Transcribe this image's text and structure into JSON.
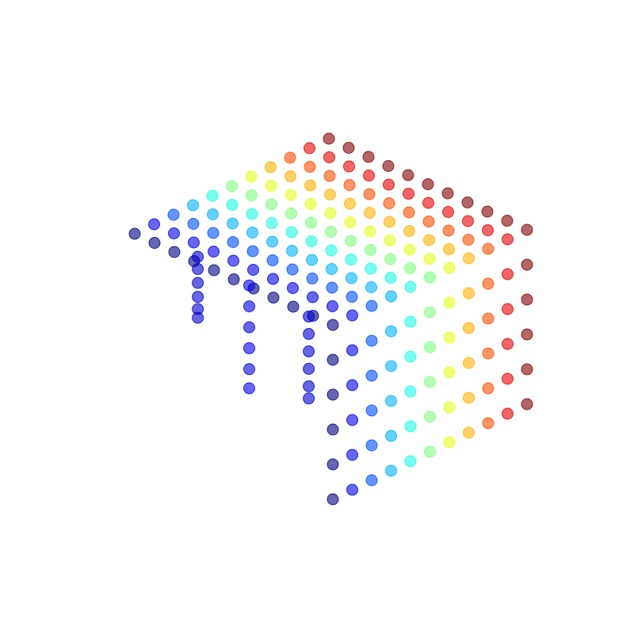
{
  "chart_data": {
    "type": "scatter3d",
    "colormap": "jet",
    "color_by": "x",
    "opacity": 0.6,
    "x": [
      0,
      0,
      0,
      0,
      0,
      0,
      0,
      0,
      0,
      0,
      0,
      0.1,
      0.1,
      0.1,
      0.1,
      0.1,
      0.1,
      0.1,
      0.1,
      0.1,
      0.1,
      0.1,
      0.2,
      0.2,
      0.2,
      0.2,
      0.2,
      0.2,
      0.2,
      0.2,
      0.2,
      0.2,
      0.2,
      0.3,
      0.3,
      0.3,
      0.3,
      0.3,
      0.3,
      0.3,
      0.3,
      0.3,
      0.3,
      0.3,
      0.4,
      0.4,
      0.4,
      0.4,
      0.4,
      0.4,
      0.4,
      0.4,
      0.4,
      0.4,
      0.4,
      0.5,
      0.5,
      0.5,
      0.5,
      0.5,
      0.5,
      0.5,
      0.5,
      0.5,
      0.5,
      0.5,
      0.6,
      0.6,
      0.6,
      0.6,
      0.6,
      0.6,
      0.6,
      0.6,
      0.6,
      0.6,
      0.6,
      0.7,
      0.7,
      0.7,
      0.7,
      0.7,
      0.7,
      0.7,
      0.7,
      0.7,
      0.7,
      0.7,
      0.8,
      0.8,
      0.8,
      0.8,
      0.8,
      0.8,
      0.8,
      0.8,
      0.8,
      0.8,
      0.8,
      0.9,
      0.9,
      0.9,
      0.9,
      0.9,
      0.9,
      0.9,
      0.9,
      0.9,
      0.9,
      0.9,
      1,
      1,
      1,
      1,
      1,
      1,
      1,
      1,
      1,
      1,
      1,
      0,
      0,
      0,
      0,
      0,
      0.1,
      0.1,
      0.1,
      0.1,
      0.1,
      0.2,
      0.2,
      0.2,
      0.2,
      0.2,
      0.3,
      0.3,
      0.3,
      0.3,
      0.3,
      0.4,
      0.4,
      0.4,
      0.4,
      0.4,
      0.5,
      0.5,
      0.5,
      0.5,
      0.5,
      0.6,
      0.6,
      0.6,
      0.6,
      0.6,
      0.7,
      0.7,
      0.7,
      0.7,
      0.7,
      0.8,
      0.8,
      0.8,
      0.8,
      0.8,
      0.9,
      0.9,
      0.9,
      0.9,
      0.9,
      1,
      1,
      1,
      1,
      1,
      0.08,
      0.08,
      0.08,
      0.08,
      0.08,
      0.08,
      0.1,
      0.1,
      0.1,
      0.1,
      0.1,
      0.1,
      0.08,
      0.08,
      0.08,
      0.08,
      0.08,
      0.08
    ],
    "y": [
      0,
      0.1,
      0.2,
      0.3,
      0.4,
      0.5,
      0.6,
      0.7,
      0.8,
      0.9,
      1,
      0,
      0.1,
      0.2,
      0.3,
      0.4,
      0.5,
      0.6,
      0.7,
      0.8,
      0.9,
      1,
      0,
      0.1,
      0.2,
      0.3,
      0.4,
      0.5,
      0.6,
      0.7,
      0.8,
      0.9,
      1,
      0,
      0.1,
      0.2,
      0.3,
      0.4,
      0.5,
      0.6,
      0.7,
      0.8,
      0.9,
      1,
      0,
      0.1,
      0.2,
      0.3,
      0.4,
      0.5,
      0.6,
      0.7,
      0.8,
      0.9,
      1,
      0,
      0.1,
      0.2,
      0.3,
      0.4,
      0.5,
      0.6,
      0.7,
      0.8,
      0.9,
      1,
      0,
      0.1,
      0.2,
      0.3,
      0.4,
      0.5,
      0.6,
      0.7,
      0.8,
      0.9,
      1,
      0,
      0.1,
      0.2,
      0.3,
      0.4,
      0.5,
      0.6,
      0.7,
      0.8,
      0.9,
      1,
      0,
      0.1,
      0.2,
      0.3,
      0.4,
      0.5,
      0.6,
      0.7,
      0.8,
      0.9,
      1,
      0,
      0.1,
      0.2,
      0.3,
      0.4,
      0.5,
      0.6,
      0.7,
      0.8,
      0.9,
      1,
      0,
      0.1,
      0.2,
      0.3,
      0.4,
      0.5,
      0.6,
      0.7,
      0.8,
      0.9,
      1,
      1,
      1,
      1,
      1,
      1,
      1,
      1,
      1,
      1,
      1,
      1,
      1,
      1,
      1,
      1,
      1,
      1,
      1,
      1,
      1,
      1,
      1,
      1,
      1,
      1,
      1,
      1,
      1,
      1,
      1,
      1,
      1,
      1,
      1,
      1,
      1,
      1,
      1,
      1,
      1,
      1,
      1,
      1,
      1,
      1,
      1,
      1,
      1,
      1,
      1,
      1,
      1,
      1,
      1,
      1,
      0.24,
      0.24,
      0.24,
      0.24,
      0.24,
      0.24,
      0.48,
      0.48,
      0.48,
      0.48,
      0.48,
      0.48,
      0.8,
      0.8,
      0.8,
      0.8,
      0.8,
      0.8
    ],
    "z": [
      1,
      1,
      1,
      1,
      1,
      1,
      1,
      1,
      1,
      1,
      1,
      1,
      1,
      1,
      1,
      1,
      1,
      1,
      1,
      1,
      1,
      1,
      1,
      1,
      1,
      1,
      1,
      1,
      1,
      1,
      1,
      1,
      1,
      1,
      1,
      1,
      1,
      1,
      1,
      1,
      1,
      1,
      1,
      1,
      1,
      1,
      1,
      1,
      1,
      1,
      1,
      1,
      1,
      1,
      1,
      1,
      1,
      1,
      1,
      1,
      1,
      1,
      1,
      1,
      1,
      1,
      1,
      1,
      1,
      1,
      1,
      1,
      1,
      1,
      1,
      1,
      1,
      1,
      1,
      1,
      1,
      1,
      1,
      1,
      1,
      1,
      1,
      1,
      1,
      1,
      1,
      1,
      1,
      1,
      1,
      1,
      1,
      1,
      1,
      1,
      1,
      1,
      1,
      1,
      1,
      1,
      1,
      1,
      1,
      1,
      1,
      1,
      1,
      1,
      1,
      1,
      1,
      1,
      1,
      1,
      1,
      0.8,
      0.6,
      0.4,
      0.2,
      0,
      0.8,
      0.6,
      0.4,
      0.2,
      0,
      0.8,
      0.6,
      0.4,
      0.2,
      0,
      0.8,
      0.6,
      0.4,
      0.2,
      0,
      0.8,
      0.6,
      0.4,
      0.2,
      0,
      0.8,
      0.6,
      0.4,
      0.2,
      0,
      0.8,
      0.6,
      0.4,
      0.2,
      0,
      0.8,
      0.6,
      0.4,
      0.2,
      0,
      0.8,
      0.6,
      0.4,
      0.2,
      0,
      0.8,
      0.6,
      0.4,
      0.2,
      0,
      0.8,
      0.6,
      0.4,
      0.2,
      0,
      0.95,
      0.88,
      0.8,
      0.72,
      0.65,
      0.6,
      0.9,
      0.78,
      0.66,
      0.54,
      0.42,
      0.31,
      0.9,
      0.8,
      0.7,
      0.6,
      0.5,
      0.43
    ],
    "xlim": [
      0,
      1
    ],
    "ylim": [
      0,
      1
    ],
    "zlim": [
      0,
      1
    ]
  }
}
